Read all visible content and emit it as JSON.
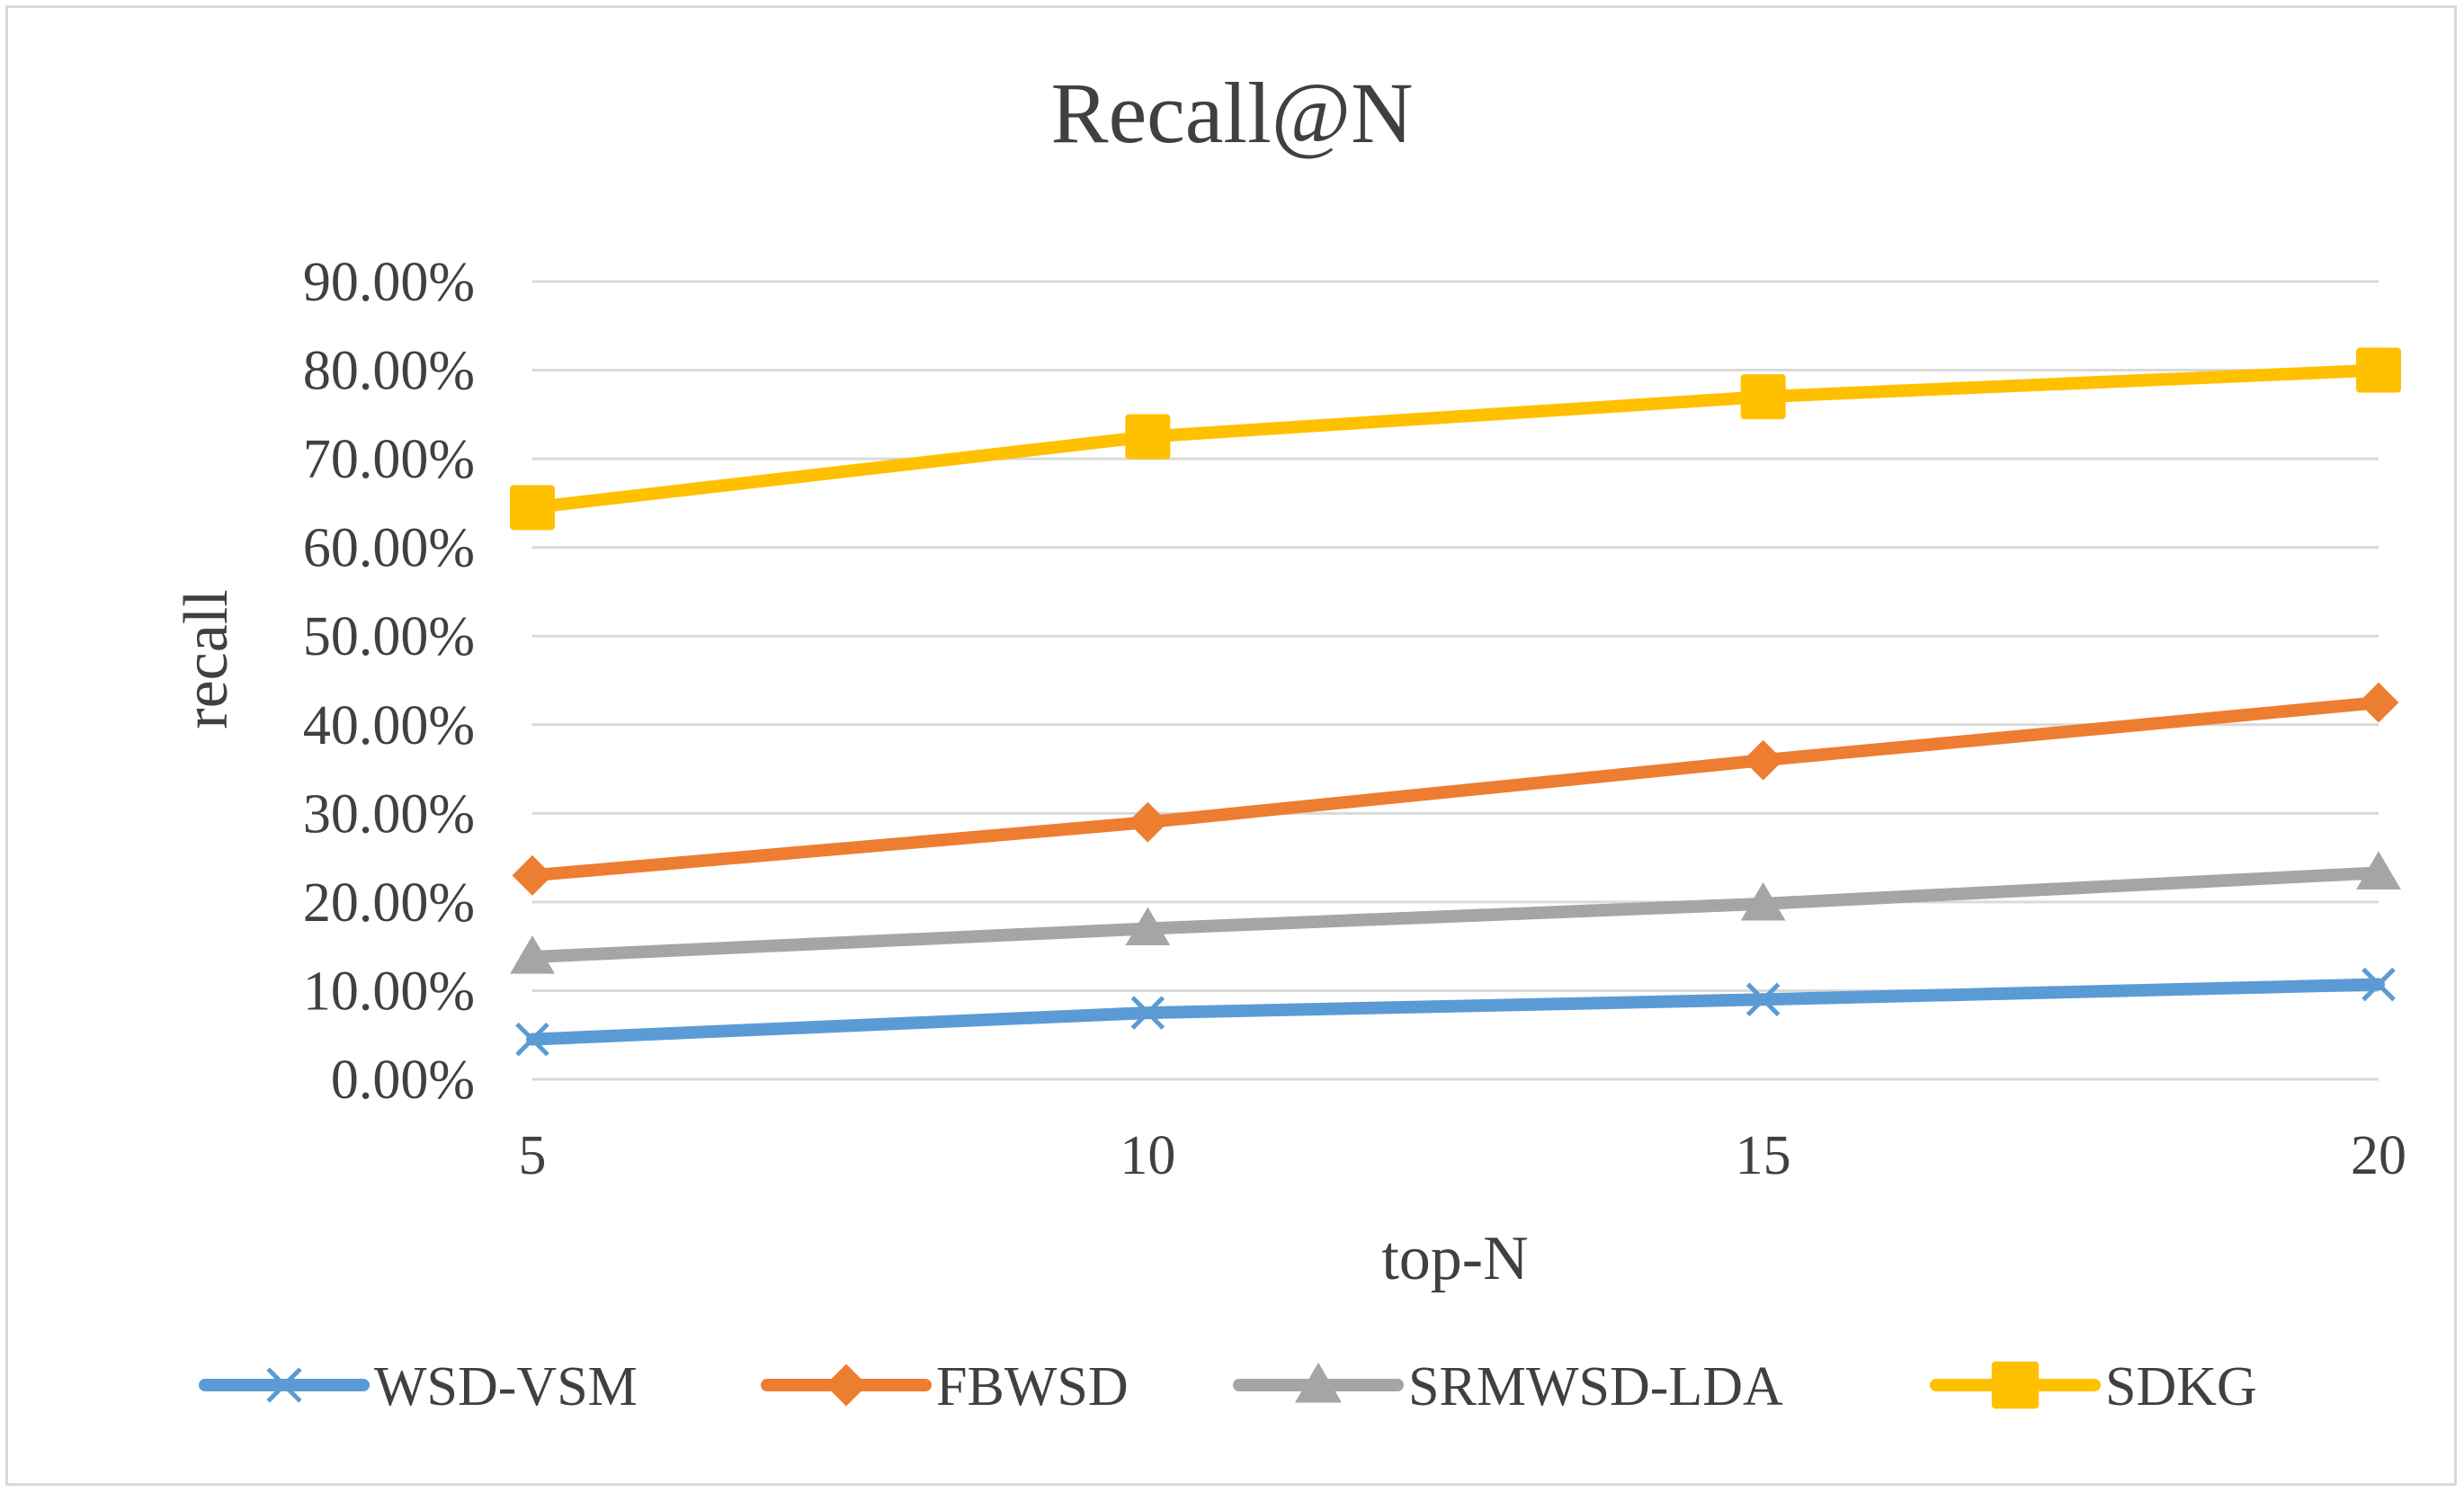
{
  "chart_data": {
    "type": "line",
    "title": "Recall@N",
    "xlabel": "top-N",
    "ylabel": "recall",
    "x": [
      5,
      10,
      15,
      20
    ],
    "x_tick_labels": [
      "5",
      "10",
      "15",
      "20"
    ],
    "ylim": [
      0,
      0.9
    ],
    "y_tick_labels": [
      "0.00%",
      "10.00%",
      "20.00%",
      "30.00%",
      "40.00%",
      "50.00%",
      "60.00%",
      "70.00%",
      "80.00%",
      "90.00%"
    ],
    "grid": true,
    "legend_position": "bottom",
    "series": [
      {
        "name": "WSD-VSM",
        "values": [
          0.045,
          0.075,
          0.09,
          0.107
        ],
        "color": "#5b9bd5",
        "marker": "x"
      },
      {
        "name": "FBWSD",
        "values": [
          0.23,
          0.29,
          0.36,
          0.425
        ],
        "color": "#ed7d31",
        "marker": "diamond"
      },
      {
        "name": "SRMWSD-LDA",
        "values": [
          0.138,
          0.17,
          0.198,
          0.233
        ],
        "color": "#a5a5a5",
        "marker": "triangle"
      },
      {
        "name": "SDKG",
        "values": [
          0.645,
          0.725,
          0.77,
          0.8
        ],
        "color": "#ffc000",
        "marker": "square"
      }
    ]
  }
}
